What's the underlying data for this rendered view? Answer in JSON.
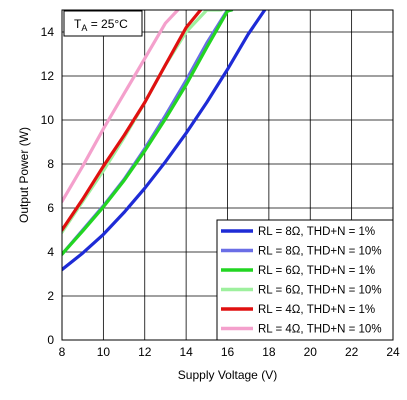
{
  "chart_data": {
    "type": "line",
    "xlabel": "Supply Voltage (V)",
    "ylabel": "Output Power (W)",
    "xlim": [
      8,
      24
    ],
    "ylim": [
      0,
      15
    ],
    "xticks": [
      8,
      10,
      12,
      14,
      16,
      18,
      20,
      22,
      24
    ],
    "yticks": [
      0,
      2,
      4,
      6,
      8,
      10,
      12,
      14
    ],
    "grid": true,
    "legend_position": "bottom-right",
    "annotation": {
      "main": "T",
      "sub": "A",
      "rest": " = 25°C"
    },
    "series": [
      {
        "name": "RL = 8Ω, THD+N = 1%",
        "color": "#1e2bd6",
        "x": [
          8,
          9,
          10,
          11,
          12,
          13,
          14,
          15,
          16,
          17,
          17.8
        ],
        "y": [
          3.2,
          3.95,
          4.8,
          5.8,
          6.9,
          8.1,
          9.4,
          10.8,
          12.3,
          13.9,
          15
        ]
      },
      {
        "name": "RL = 8Ω, THD+N = 10%",
        "color": "#6a6ee6",
        "x": [
          8,
          9,
          10,
          11,
          12,
          13,
          14,
          15,
          16,
          16.2
        ],
        "y": [
          3.9,
          5.0,
          6.1,
          7.3,
          8.7,
          10.2,
          11.8,
          13.5,
          15.0,
          15.0
        ]
      },
      {
        "name": "RL = 6Ω, THD+N = 1%",
        "color": "#22d522",
        "x": [
          8,
          9,
          10,
          11,
          12,
          13,
          14,
          15,
          16,
          16.2
        ],
        "y": [
          3.9,
          4.95,
          6.05,
          7.25,
          8.6,
          10.05,
          11.6,
          13.3,
          14.95,
          15.0
        ]
      },
      {
        "name": "RL = 6Ω, THD+N = 10%",
        "color": "#9ef09e",
        "x": [
          8,
          9,
          10,
          11,
          12,
          13,
          14,
          15,
          15.7
        ],
        "y": [
          4.9,
          6.3,
          7.7,
          9.2,
          10.8,
          12.5,
          14.0,
          15.0,
          15.0
        ]
      },
      {
        "name": "RL = 4Ω, THD+N = 1%",
        "color": "#e01010",
        "x": [
          8,
          9,
          10,
          11,
          12,
          13,
          14,
          14.7
        ],
        "y": [
          5.0,
          6.4,
          7.9,
          9.3,
          10.8,
          12.5,
          14.2,
          15.0
        ]
      },
      {
        "name": "RL = 4Ω, THD+N = 10%",
        "color": "#f4a0cc",
        "x": [
          8,
          9,
          10,
          11,
          12,
          13,
          13.6
        ],
        "y": [
          6.3,
          7.9,
          9.6,
          11.2,
          12.8,
          14.4,
          15.0
        ]
      }
    ]
  }
}
